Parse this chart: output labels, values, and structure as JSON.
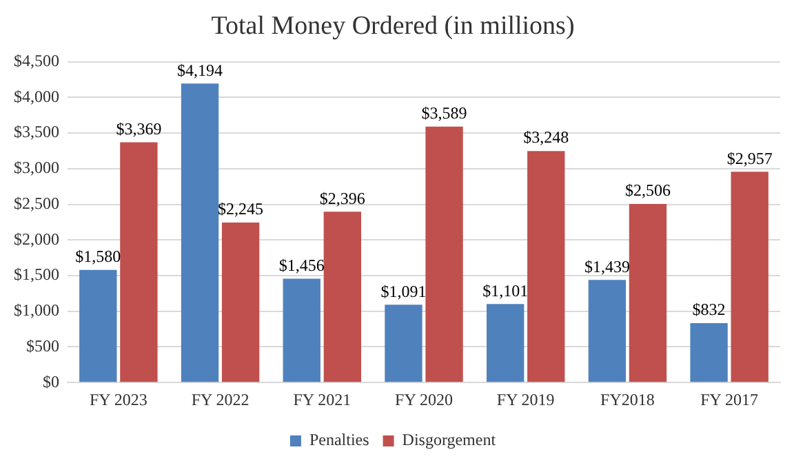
{
  "chart_data": {
    "type": "bar",
    "title": "Total Money Ordered (in millions)",
    "categories": [
      "FY 2023",
      "FY 2022",
      "FY 2021",
      "FY 2020",
      "FY 2019",
      "FY2018",
      "FY 2017"
    ],
    "series": [
      {
        "name": "Penalties",
        "color": "#4f81bd",
        "values": [
          1580,
          4194,
          1456,
          1091,
          1101,
          1439,
          832
        ],
        "value_labels": [
          "$1,580",
          "$4,194",
          "$1,456",
          "$1,091",
          "$1,101",
          "$1,439",
          "$832"
        ]
      },
      {
        "name": "Disgorgement",
        "color": "#c0504d",
        "values": [
          3369,
          2245,
          2396,
          3589,
          3248,
          2506,
          2957
        ],
        "value_labels": [
          "$3,369",
          "$2,245",
          "$2,396",
          "$3,589",
          "$3,248",
          "$2,506",
          "$2,957"
        ]
      }
    ],
    "ylim": [
      0,
      4500
    ],
    "yticks": [
      {
        "value": 0,
        "label": "$0"
      },
      {
        "value": 500,
        "label": "$500"
      },
      {
        "value": 1000,
        "label": "$1,000"
      },
      {
        "value": 1500,
        "label": "$1,500"
      },
      {
        "value": 2000,
        "label": "$2,000"
      },
      {
        "value": 2500,
        "label": "$2,500"
      },
      {
        "value": 3000,
        "label": "$3,000"
      },
      {
        "value": 3500,
        "label": "$3,500"
      },
      {
        "value": 4000,
        "label": "$4,000"
      },
      {
        "value": 4500,
        "label": "$4,500"
      }
    ],
    "grid": "y",
    "legend": "bottom"
  }
}
